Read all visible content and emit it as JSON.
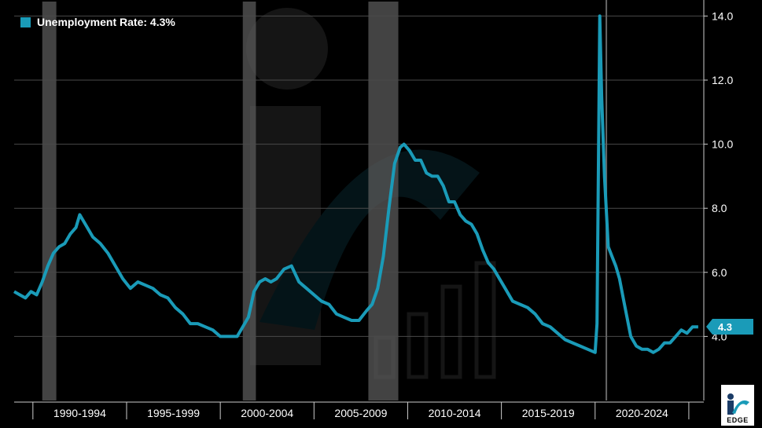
{
  "legend": {
    "label": "Unemployment Rate: 4.3%"
  },
  "badge": {
    "value": "4.3"
  },
  "logo": {
    "text": "EDGE"
  },
  "colors": {
    "series": "#1a9bb8",
    "recession": "#5a5a5a",
    "grid": "#4a4a4a",
    "text": "#ffffff",
    "background": "#000000"
  },
  "chart_data": {
    "type": "line",
    "title": "",
    "xlabel": "",
    "ylabel": "",
    "xlim": [
      1989.0,
      2025.8
    ],
    "ylim": [
      2.0,
      14.5
    ],
    "y_ticks": [
      4.0,
      6.0,
      8.0,
      10.0,
      12.0,
      14.0
    ],
    "y_tick_labels": [
      "4.0",
      "6.0",
      "8.0",
      "10.0",
      "12.0",
      "14.0"
    ],
    "x_period_labels": [
      {
        "label": "1990-1994",
        "start": 1990,
        "end": 1995
      },
      {
        "label": "1995-1999",
        "start": 1995,
        "end": 2000
      },
      {
        "label": "2000-2004",
        "start": 2000,
        "end": 2005
      },
      {
        "label": "2005-2009",
        "start": 2005,
        "end": 2010
      },
      {
        "label": "2010-2014",
        "start": 2010,
        "end": 2015
      },
      {
        "label": "2015-2019",
        "start": 2015,
        "end": 2020
      },
      {
        "label": "2020-2024",
        "start": 2020,
        "end": 2025
      }
    ],
    "recessions": [
      [
        1990.5,
        1991.25
      ],
      [
        2001.2,
        2001.9
      ],
      [
        2007.9,
        2009.5
      ]
    ],
    "vertical_markers": [
      2020.6
    ],
    "grid": true,
    "legend_position": "top-left",
    "series": [
      {
        "name": "Unemployment Rate",
        "x": [
          1989.0,
          1989.3,
          1989.6,
          1989.9,
          1990.2,
          1990.5,
          1990.8,
          1991.1,
          1991.4,
          1991.7,
          1992.0,
          1992.3,
          1992.5,
          1992.8,
          1993.2,
          1993.6,
          1994.0,
          1994.4,
          1994.8,
          1995.2,
          1995.6,
          1996.0,
          1996.4,
          1996.8,
          1997.2,
          1997.6,
          1998.0,
          1998.4,
          1998.8,
          1999.2,
          1999.6,
          2000.0,
          2000.3,
          2000.6,
          2000.9,
          2001.2,
          2001.5,
          2001.8,
          2002.1,
          2002.4,
          2002.7,
          2003.0,
          2003.4,
          2003.8,
          2004.2,
          2004.6,
          2005.0,
          2005.4,
          2005.8,
          2006.2,
          2006.6,
          2007.0,
          2007.4,
          2007.8,
          2008.1,
          2008.4,
          2008.7,
          2009.0,
          2009.3,
          2009.6,
          2009.8,
          2010.1,
          2010.4,
          2010.7,
          2011.0,
          2011.3,
          2011.6,
          2011.9,
          2012.2,
          2012.5,
          2012.8,
          2013.1,
          2013.4,
          2013.7,
          2014.0,
          2014.3,
          2014.6,
          2014.9,
          2015.2,
          2015.6,
          2016.0,
          2016.4,
          2016.8,
          2017.2,
          2017.6,
          2018.0,
          2018.4,
          2018.8,
          2019.2,
          2019.6,
          2020.0,
          2020.1,
          2020.25,
          2020.35,
          2020.5,
          2020.7,
          2020.9,
          2021.1,
          2021.3,
          2021.5,
          2021.7,
          2021.9,
          2022.2,
          2022.5,
          2022.8,
          2023.1,
          2023.4,
          2023.7,
          2024.0,
          2024.3,
          2024.6,
          2024.9,
          2025.2,
          2025.5
        ],
        "values": [
          5.4,
          5.3,
          5.2,
          5.4,
          5.3,
          5.7,
          6.2,
          6.6,
          6.8,
          6.9,
          7.2,
          7.4,
          7.8,
          7.5,
          7.1,
          6.9,
          6.6,
          6.2,
          5.8,
          5.5,
          5.7,
          5.6,
          5.5,
          5.3,
          5.2,
          4.9,
          4.7,
          4.4,
          4.4,
          4.3,
          4.2,
          4.0,
          4.0,
          4.0,
          4.0,
          4.3,
          4.6,
          5.4,
          5.7,
          5.8,
          5.7,
          5.8,
          6.1,
          6.2,
          5.7,
          5.5,
          5.3,
          5.1,
          5.0,
          4.7,
          4.6,
          4.5,
          4.5,
          4.8,
          5.0,
          5.5,
          6.5,
          8.0,
          9.4,
          9.9,
          10.0,
          9.8,
          9.5,
          9.5,
          9.1,
          9.0,
          9.0,
          8.7,
          8.2,
          8.2,
          7.8,
          7.6,
          7.5,
          7.2,
          6.7,
          6.3,
          6.1,
          5.8,
          5.5,
          5.1,
          5.0,
          4.9,
          4.7,
          4.4,
          4.3,
          4.1,
          3.9,
          3.8,
          3.7,
          3.6,
          3.5,
          4.4,
          14.0,
          11.5,
          9.0,
          6.8,
          6.5,
          6.2,
          5.8,
          5.2,
          4.6,
          4.0,
          3.7,
          3.6,
          3.6,
          3.5,
          3.6,
          3.8,
          3.8,
          4.0,
          4.2,
          4.1,
          4.3,
          4.3
        ]
      }
    ]
  }
}
